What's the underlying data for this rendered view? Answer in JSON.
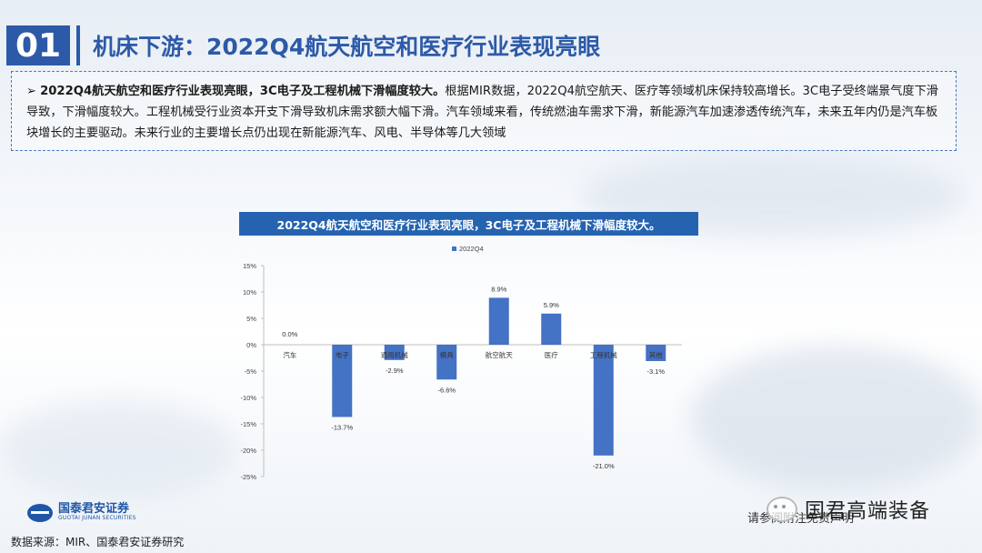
{
  "slide": {
    "number": "01",
    "title": "机床下游：2022Q4航天航空和医疗行业表现亮眼"
  },
  "summary": {
    "bullet": "➢",
    "lead": "2022Q4航天航空和医疗行业表现亮眼，3C电子及工程机械下滑幅度较大。",
    "body": "根据MIR数据，2022Q4航空航天、医疗等领域机床保持较高增长。3C电子受终端景气度下滑导致，下滑幅度较大。工程机械受行业资本开支下滑导致机床需求额大幅下滑。汽车领域来看，传统燃油车需求下滑，新能源汽车加速渗透传统汽车，未来五年内仍是汽车板块增长的主要驱动。未来行业的主要增长点仍出现在新能源汽车、风电、半导体等几大领域"
  },
  "chart_header": "2022Q4航天航空和医疗行业表现亮眼，3C电子及工程机械下滑幅度较大。",
  "chart_data": {
    "type": "bar",
    "title": "2022Q4航天航空和医疗行业表现亮眼，3C电子及工程机械下滑幅度较大。",
    "categories": [
      "汽车",
      "电子",
      "通用机械",
      "模具",
      "航空航天",
      "医疗",
      "工程机械",
      "其他"
    ],
    "series": [
      {
        "name": "2022Q4",
        "values": [
          0.0,
          -13.7,
          -2.9,
          -6.6,
          8.9,
          5.9,
          -21.0,
          -3.1
        ]
      }
    ],
    "data_labels": [
      "0.0%",
      "-13.7%",
      "-2.9%",
      "-6.6%",
      "8.9%",
      "5.9%",
      "-21.0%",
      "-3.1%"
    ],
    "yticks": [
      "15%",
      "10%",
      "5%",
      "0%",
      "-5%",
      "-10%",
      "-15%",
      "-20%",
      "-25%"
    ],
    "ylim": [
      -25,
      15
    ],
    "legend_position": "top",
    "grid": false,
    "bar_color": "#4472c4"
  },
  "logo": {
    "cn": "国泰君安证券",
    "en": "GUOTAI JUNAN SECURITIES"
  },
  "source": "数据来源：MIR、国泰君安证券研究",
  "footer_note": "请参阅附注免责声明",
  "watermark": "国君高端装备",
  "colors": {
    "brand_blue": "#2d5aa8",
    "header_blue": "#2563b0"
  }
}
